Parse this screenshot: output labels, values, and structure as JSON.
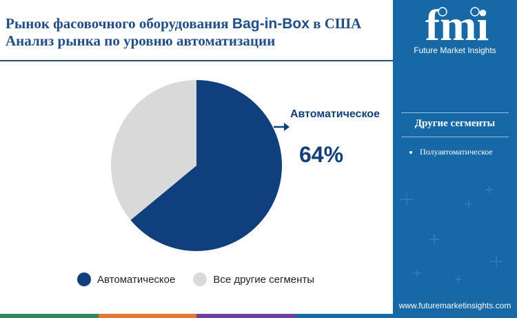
{
  "header": {
    "title_part1": "Рынок фасовочного оборудования ",
    "title_highlight": "Bag-in-Box",
    "title_part2": " в США Анализ рынка по уровню автоматизации"
  },
  "chart_data": {
    "type": "pie",
    "slices": [
      {
        "label": "Автоматическое",
        "value": 64,
        "color": "#0f3f7c"
      },
      {
        "label": "Все другие сегменты",
        "value": 36,
        "color": "#d9d9d9"
      }
    ],
    "callout": {
      "label": "Автоматическое",
      "value_text": "64%"
    },
    "legend": [
      "Автоматическое",
      "Все другие сегменты"
    ],
    "legend_position": "bottom"
  },
  "sidebar": {
    "logo_text": "fmi",
    "logo_subtitle": "Future Market Insights",
    "heading": "Другие сегменты",
    "items": [
      "Полуавтоматическое"
    ],
    "url": "www.futuremarketinsights.com"
  },
  "colors": {
    "primary": "#0f3f7c",
    "secondary": "#d9d9d9",
    "sidebar": "#1668a7",
    "title": "#1f4e8c",
    "footer_bar": [
      "#2e8b57",
      "#e8762d",
      "#6f3fa0",
      "#1668a7"
    ]
  }
}
